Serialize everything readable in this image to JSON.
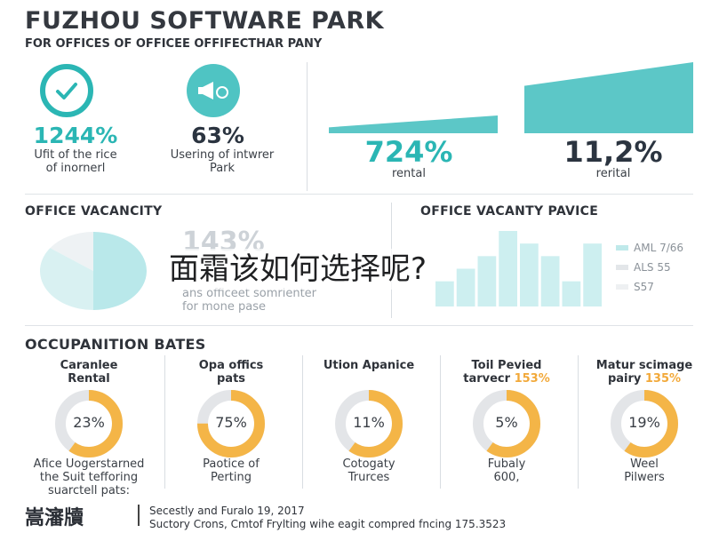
{
  "header": {
    "title": "FUZHOU SOFTWARE PARK",
    "subtitle": "FOR OFFICES OF OFFICEE OFFIFECTHAR PANY"
  },
  "kpis": [
    {
      "value": "1244%",
      "caption_line1": "Ufit of the rice",
      "caption_line2": "of inornerl",
      "color": "#2bb6b4",
      "icon": "check-icon"
    },
    {
      "value": "63%",
      "caption_line1": "Usering of intwrer",
      "caption_line2": "Park",
      "color": "#2b3440",
      "icon": "megaphone-icon"
    },
    {
      "value": "724%",
      "caption_line1": "rental",
      "caption_line2": "",
      "color": "#2bb6b4"
    },
    {
      "value": "11,2%",
      "caption_line1": "rerital",
      "caption_line2": "",
      "color": "#2b3440"
    }
  ],
  "vacancy": {
    "title": "OFFICE VACANCITY",
    "ghost_value": "143%",
    "ghost_line1": "ans officeet somrienter",
    "ghost_line2": "for mone pase"
  },
  "vacancy_price": {
    "title": "OFFICE VACANTY PAVICE",
    "legend": [
      "AML 7/66",
      "ALS 55",
      "S57"
    ]
  },
  "overlay": {
    "text": "面霜该如何选择呢?"
  },
  "occupation": {
    "title": "OCCUPANITION BATES",
    "items": [
      {
        "label_line1": "Caranlee",
        "label_line2": "Rental",
        "label_highlight": "",
        "value": "23%",
        "caption_line1": "Afice Uogerstarned",
        "caption_line2": "the Suit tefforing",
        "caption_line3": "suarctell pats:"
      },
      {
        "label_line1": "Opa offics",
        "label_line2": "pats",
        "label_highlight": "",
        "value": "75%",
        "caption_line1": "Paotice of",
        "caption_line2": "Perting",
        "caption_line3": ""
      },
      {
        "label_line1": "Ution Apanice",
        "label_line2": "",
        "label_highlight": "",
        "value": "11%",
        "caption_line1": "Cotogaty",
        "caption_line2": "Trurces",
        "caption_line3": ""
      },
      {
        "label_line1": "Toil Pevied",
        "label_line2": "tarvecr",
        "label_highlight": "153%",
        "value": "5%",
        "caption_line1": "Fubaly",
        "caption_line2": "600,",
        "caption_line3": ""
      },
      {
        "label_line1": "Matur scimage",
        "label_line2": "pairy",
        "label_highlight": "135%",
        "value": "19%",
        "caption_line1": "Weel",
        "caption_line2": "Pilwers",
        "caption_line3": ""
      }
    ]
  },
  "footer": {
    "logo": "嵩瀋牘",
    "line1": "Secestly and Furalo 19, 2017",
    "line2": "Suctory Crons, Cmtof Frylting wihe eagit compred fncing 175.3523"
  },
  "chart_data": [
    {
      "type": "area",
      "title": "",
      "note": "rising teal band, unlabeled",
      "series": [
        {
          "values": [
            1,
            2,
            3,
            4,
            5,
            6
          ]
        }
      ]
    },
    {
      "type": "pie",
      "title": "OFFICE VACANCITY",
      "slices": [
        {
          "value": 50,
          "color": "#b9e8ea"
        },
        {
          "value": 35,
          "color": "#d9f1f2"
        },
        {
          "value": 15,
          "color": "#eef2f4"
        }
      ]
    },
    {
      "type": "bar",
      "title": "OFFICE VACANTY PAVICE",
      "categories": [
        "1",
        "2",
        "3",
        "4",
        "5",
        "6",
        "7",
        "8"
      ],
      "values": [
        2,
        3,
        4,
        6,
        5,
        4,
        2,
        5
      ],
      "color": "#cdeff0"
    },
    {
      "type": "pie",
      "title": "OCCUPANITION BATES",
      "donuts": [
        23,
        75,
        11,
        5,
        19
      ],
      "accent": "#f4b547",
      "track": "#e3e5e8"
    }
  ]
}
